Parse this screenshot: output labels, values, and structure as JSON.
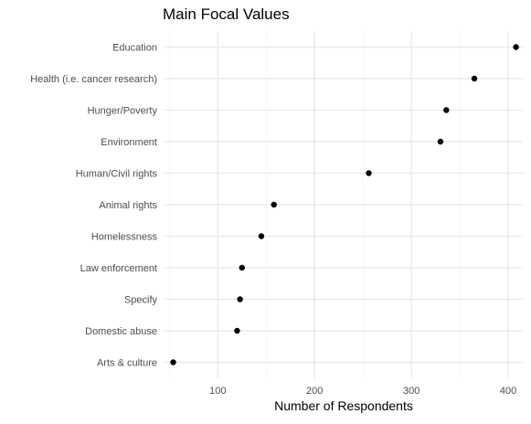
{
  "chart_data": {
    "type": "scatter",
    "title": "Main Focal Values",
    "xlabel": "Number of Respondents",
    "ylabel": "",
    "xlim": [
      45,
      415
    ],
    "x_ticks": [
      100,
      200,
      300,
      400
    ],
    "x_tick_labels": [
      "100",
      "200",
      "300",
      "400"
    ],
    "categories": [
      "Education",
      "Health (i.e. cancer research)",
      "Hunger/Poverty",
      "Environment",
      "Human/Civil rights",
      "Animal rights",
      "Homelessness",
      "Law enforcement",
      "Specify",
      "Domestic abuse",
      "Arts & culture"
    ],
    "values": [
      408,
      365,
      336,
      330,
      256,
      158,
      145,
      125,
      123,
      120,
      54
    ],
    "grid": true,
    "legend": "none",
    "colors": {
      "point": "#000000",
      "grid_major": "#ebebeb",
      "grid_minor": "#f5f5f5",
      "background": "#ffffff"
    }
  }
}
